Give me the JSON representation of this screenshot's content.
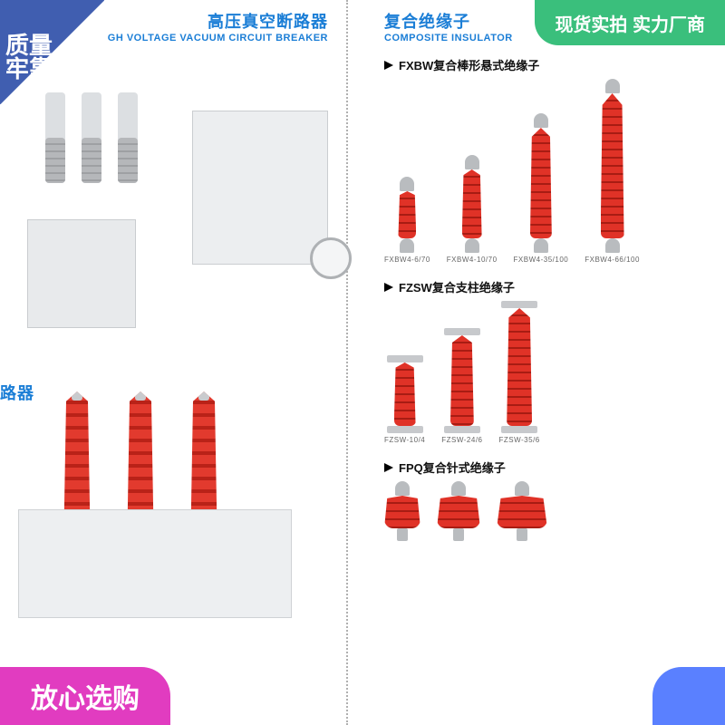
{
  "badges": {
    "top_left": {
      "line1": "质量",
      "line2": "牢靠",
      "color": "#405eb0"
    },
    "top_right": {
      "text": "现货实拍 实力厂商",
      "color": "#3abf7c"
    },
    "bottom_left": {
      "text": "放心选购",
      "color": "#e13cc0"
    },
    "bottom_right": {
      "text": "",
      "color": "#5a80ff"
    }
  },
  "left": {
    "header_cn": "高压真空断路器",
    "header_en": "GH VOLTAGE VACUUM CIRCUIT BREAKER",
    "sub_header_fragment": "路器",
    "breaker1_colors": {
      "cabinet": "#e8eaec",
      "tube": "#dcdfe2",
      "coil": "#b5b7ba",
      "panel": "#eceef0",
      "gauge_ring": "#aeb1b4"
    },
    "breaker2_colors": {
      "base": "#edeff1",
      "bushing": "#e23a2e",
      "bushing_dark": "#b92218"
    }
  },
  "right": {
    "header_cn": "复合绝缘子",
    "header_en": "COMPOSITE INSULATOR",
    "insulator_red": "#e03227",
    "insulator_red_dark": "#a81c13",
    "metal": "#b9bcbf",
    "groups": {
      "fxbw": {
        "title": "FXBW复合棒形悬式绝缘子",
        "items": [
          {
            "label": "FXBW4-6/70",
            "h": 52,
            "w": 20
          },
          {
            "label": "FXBW4-10/70",
            "h": 76,
            "w": 22
          },
          {
            "label": "FXBW4-35/100",
            "h": 122,
            "w": 24
          },
          {
            "label": "FXBW4-66/100",
            "h": 160,
            "w": 26
          }
        ]
      },
      "fzsw": {
        "title": "FZSW复合支柱绝缘子",
        "items": [
          {
            "label": "FZSW-10/4",
            "h": 70,
            "w": 24
          },
          {
            "label": "FZSW-24/6",
            "h": 100,
            "w": 26
          },
          {
            "label": "FZSW-35/6",
            "h": 130,
            "w": 28
          }
        ]
      },
      "fpq": {
        "title": "FPQ复合针式绝缘子",
        "items": [
          {
            "label": "",
            "w": 40
          },
          {
            "label": "",
            "w": 48
          },
          {
            "label": "",
            "w": 56
          }
        ]
      }
    }
  }
}
